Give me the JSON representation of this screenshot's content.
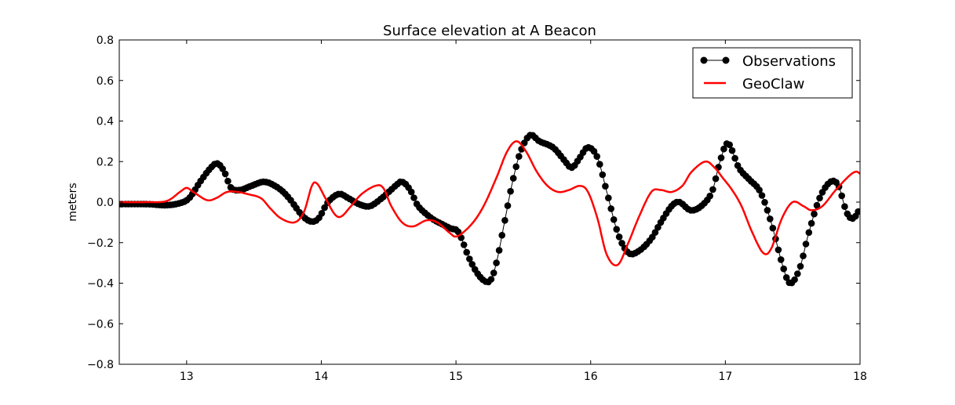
{
  "chart_data": {
    "type": "line",
    "title": "Surface elevation at A Beacon",
    "xlabel": "",
    "ylabel": "meters",
    "xlim": [
      12.5,
      18
    ],
    "ylim": [
      -0.8,
      0.8
    ],
    "x_ticks": [
      "13",
      "14",
      "15",
      "16",
      "17",
      "18"
    ],
    "x_tick_values": [
      13,
      14,
      15,
      16,
      17,
      18
    ],
    "y_ticks": [
      "0.8",
      "0.6",
      "0.4",
      "0.2",
      "0.0",
      "−0.2",
      "−0.4",
      "−0.6",
      "−0.8"
    ],
    "y_tick_values": [
      0.8,
      0.6,
      0.4,
      0.2,
      0.0,
      -0.2,
      -0.4,
      -0.6,
      -0.8
    ],
    "grid": false,
    "legend_position": "top-right",
    "series": [
      {
        "name": "Observations",
        "color": "#000000",
        "style": "line-with-markers",
        "points": [
          [
            12.5,
            -0.01
          ],
          [
            12.7,
            -0.01
          ],
          [
            12.85,
            -0.015
          ],
          [
            12.95,
            -0.005
          ],
          [
            13.02,
            0.02
          ],
          [
            13.1,
            0.1
          ],
          [
            13.18,
            0.17
          ],
          [
            13.23,
            0.19
          ],
          [
            13.28,
            0.15
          ],
          [
            13.33,
            0.07
          ],
          [
            13.4,
            0.06
          ],
          [
            13.48,
            0.08
          ],
          [
            13.58,
            0.1
          ],
          [
            13.68,
            0.07
          ],
          [
            13.76,
            0.02
          ],
          [
            13.85,
            -0.06
          ],
          [
            13.92,
            -0.095
          ],
          [
            13.98,
            -0.08
          ],
          [
            14.05,
            0.0
          ],
          [
            14.13,
            0.04
          ],
          [
            14.2,
            0.02
          ],
          [
            14.28,
            -0.01
          ],
          [
            14.36,
            -0.02
          ],
          [
            14.45,
            0.02
          ],
          [
            14.55,
            0.08
          ],
          [
            14.6,
            0.1
          ],
          [
            14.66,
            0.06
          ],
          [
            14.72,
            -0.02
          ],
          [
            14.82,
            -0.08
          ],
          [
            14.9,
            -0.11
          ],
          [
            14.96,
            -0.13
          ],
          [
            15.02,
            -0.15
          ],
          [
            15.1,
            -0.28
          ],
          [
            15.18,
            -0.37
          ],
          [
            15.25,
            -0.39
          ],
          [
            15.3,
            -0.3
          ],
          [
            15.36,
            -0.1
          ],
          [
            15.42,
            0.1
          ],
          [
            15.48,
            0.25
          ],
          [
            15.55,
            0.33
          ],
          [
            15.62,
            0.3
          ],
          [
            15.72,
            0.27
          ],
          [
            15.8,
            0.21
          ],
          [
            15.86,
            0.17
          ],
          [
            15.92,
            0.22
          ],
          [
            15.98,
            0.27
          ],
          [
            16.05,
            0.22
          ],
          [
            16.12,
            0.05
          ],
          [
            16.2,
            -0.15
          ],
          [
            16.28,
            -0.25
          ],
          [
            16.36,
            -0.24
          ],
          [
            16.45,
            -0.18
          ],
          [
            16.52,
            -0.1
          ],
          [
            16.6,
            -0.02
          ],
          [
            16.66,
            0.0
          ],
          [
            16.74,
            -0.04
          ],
          [
            16.82,
            -0.02
          ],
          [
            16.9,
            0.05
          ],
          [
            16.96,
            0.2
          ],
          [
            17.02,
            0.29
          ],
          [
            17.1,
            0.17
          ],
          [
            17.18,
            0.11
          ],
          [
            17.26,
            0.05
          ],
          [
            17.34,
            -0.1
          ],
          [
            17.42,
            -0.3
          ],
          [
            17.48,
            -0.4
          ],
          [
            17.55,
            -0.33
          ],
          [
            17.62,
            -0.15
          ],
          [
            17.7,
            0.02
          ],
          [
            17.78,
            0.1
          ],
          [
            17.84,
            0.08
          ],
          [
            17.9,
            -0.05
          ],
          [
            17.95,
            -0.08
          ],
          [
            18.0,
            -0.03
          ]
        ]
      },
      {
        "name": "GeoClaw",
        "color": "#ff0000",
        "style": "line",
        "points": [
          [
            12.5,
            0.0
          ],
          [
            12.7,
            0.0
          ],
          [
            12.85,
            0.005
          ],
          [
            12.95,
            0.05
          ],
          [
            13.0,
            0.07
          ],
          [
            13.05,
            0.05
          ],
          [
            13.15,
            0.01
          ],
          [
            13.22,
            0.02
          ],
          [
            13.3,
            0.05
          ],
          [
            13.38,
            0.05
          ],
          [
            13.45,
            0.04
          ],
          [
            13.55,
            0.02
          ],
          [
            13.62,
            -0.03
          ],
          [
            13.7,
            -0.08
          ],
          [
            13.8,
            -0.1
          ],
          [
            13.87,
            -0.05
          ],
          [
            13.93,
            0.08
          ],
          [
            13.97,
            0.09
          ],
          [
            14.03,
            0.02
          ],
          [
            14.1,
            -0.06
          ],
          [
            14.15,
            -0.07
          ],
          [
            14.22,
            -0.02
          ],
          [
            14.3,
            0.04
          ],
          [
            14.4,
            0.08
          ],
          [
            14.46,
            0.07
          ],
          [
            14.52,
            -0.02
          ],
          [
            14.6,
            -0.1
          ],
          [
            14.68,
            -0.12
          ],
          [
            14.78,
            -0.09
          ],
          [
            14.86,
            -0.1
          ],
          [
            14.95,
            -0.15
          ],
          [
            15.0,
            -0.17
          ],
          [
            15.07,
            -0.14
          ],
          [
            15.15,
            -0.08
          ],
          [
            15.22,
            0.0
          ],
          [
            15.3,
            0.12
          ],
          [
            15.38,
            0.25
          ],
          [
            15.45,
            0.3
          ],
          [
            15.52,
            0.25
          ],
          [
            15.6,
            0.15
          ],
          [
            15.68,
            0.08
          ],
          [
            15.76,
            0.05
          ],
          [
            15.84,
            0.06
          ],
          [
            15.92,
            0.08
          ],
          [
            15.98,
            0.05
          ],
          [
            16.05,
            -0.08
          ],
          [
            16.12,
            -0.26
          ],
          [
            16.2,
            -0.31
          ],
          [
            16.28,
            -0.2
          ],
          [
            16.36,
            -0.07
          ],
          [
            16.45,
            0.05
          ],
          [
            16.52,
            0.06
          ],
          [
            16.6,
            0.05
          ],
          [
            16.68,
            0.08
          ],
          [
            16.75,
            0.15
          ],
          [
            16.85,
            0.2
          ],
          [
            16.92,
            0.17
          ],
          [
            16.98,
            0.12
          ],
          [
            17.05,
            0.06
          ],
          [
            17.12,
            -0.02
          ],
          [
            17.2,
            -0.15
          ],
          [
            17.28,
            -0.25
          ],
          [
            17.34,
            -0.23
          ],
          [
            17.42,
            -0.08
          ],
          [
            17.5,
            0.0
          ],
          [
            17.58,
            -0.02
          ],
          [
            17.64,
            -0.04
          ],
          [
            17.72,
            -0.02
          ],
          [
            17.82,
            0.06
          ],
          [
            17.92,
            0.13
          ],
          [
            17.97,
            0.15
          ],
          [
            18.0,
            0.14
          ]
        ]
      }
    ]
  }
}
